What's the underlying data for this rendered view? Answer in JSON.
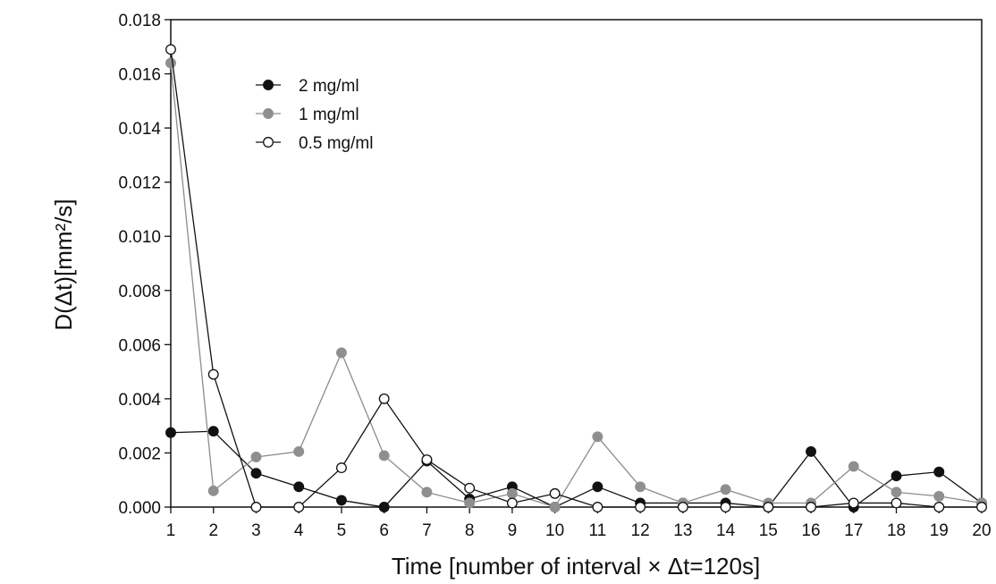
{
  "chart_data": {
    "type": "line",
    "xlabel": "Time [number of interval × Δt=120s]",
    "ylabel": "D(Δt)[mm²/s]",
    "xlim": [
      1,
      20
    ],
    "ylim": [
      0,
      0.018
    ],
    "x_ticks": [
      1,
      2,
      3,
      4,
      5,
      6,
      7,
      8,
      9,
      10,
      11,
      12,
      13,
      14,
      15,
      16,
      17,
      18,
      19,
      20
    ],
    "y_ticks": [
      "0.000",
      "0.002",
      "0.004",
      "0.006",
      "0.008",
      "0.010",
      "0.012",
      "0.014",
      "0.016",
      "0.018"
    ],
    "grid": false,
    "legend_position": "top-left",
    "x": [
      1,
      2,
      3,
      4,
      5,
      6,
      7,
      8,
      9,
      10,
      11,
      12,
      13,
      14,
      15,
      16,
      17,
      18,
      19,
      20
    ],
    "series": [
      {
        "name": "2 mg/ml",
        "marker": "filled-black",
        "line_color": "#111111",
        "values": [
          0.00275,
          0.0028,
          0.00125,
          0.00075,
          0.00025,
          0.0,
          0.0017,
          0.0003,
          0.00075,
          0.0,
          0.00075,
          0.00015,
          0.00015,
          0.00015,
          0.0,
          0.00205,
          0.0,
          0.00115,
          0.0013,
          0.00015
        ]
      },
      {
        "name": "1 mg/ml",
        "marker": "filled-gray",
        "line_color": "#8c8c8c",
        "values": [
          0.0164,
          0.0006,
          0.00185,
          0.00205,
          0.0057,
          0.0019,
          0.00055,
          0.00015,
          0.0005,
          0.0,
          0.0026,
          0.00075,
          0.00015,
          0.00065,
          0.00015,
          0.00015,
          0.0015,
          0.00055,
          0.0004,
          0.00015
        ]
      },
      {
        "name": "0.5 mg/ml",
        "marker": "open-circle",
        "line_color": "#111111",
        "values": [
          0.0169,
          0.0049,
          0.0,
          0.0,
          0.00145,
          0.004,
          0.00175,
          0.0007,
          0.00015,
          0.0005,
          0.0,
          0.0,
          0.0,
          0.0,
          0.0,
          0.0,
          0.00015,
          0.00015,
          0.0,
          0.0
        ]
      }
    ]
  },
  "colors": {
    "series_black": "#111111",
    "series_gray": "#8c8c8c",
    "marker_gray": "#8f8f8f",
    "axis": "#111111"
  }
}
